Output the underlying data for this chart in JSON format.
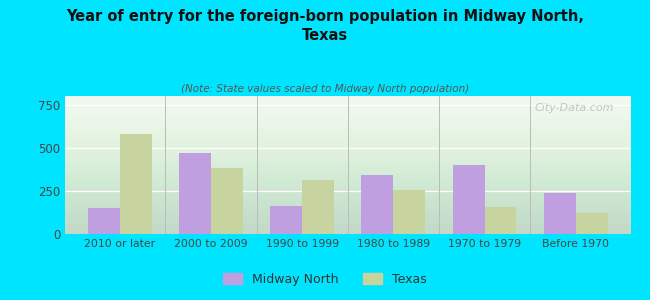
{
  "title": "Year of entry for the foreign-born population in Midway North,\nTexas",
  "subtitle": "(Note: State values scaled to Midway North population)",
  "categories": [
    "2010 or later",
    "2000 to 2009",
    "1990 to 1999",
    "1980 to 1989",
    "1970 to 1979",
    "Before 1970"
  ],
  "midway_north": [
    150,
    470,
    160,
    340,
    400,
    240
  ],
  "texas": [
    580,
    385,
    315,
    255,
    155,
    120
  ],
  "midway_color": "#bf9fdf",
  "texas_color": "#c8d4a0",
  "background_color": "#00e5ff",
  "ylim": [
    0,
    800
  ],
  "yticks": [
    0,
    250,
    500,
    750
  ],
  "watermark": "City-Data.com",
  "legend_midway": "Midway North",
  "legend_texas": "Texas",
  "bar_width": 0.35
}
